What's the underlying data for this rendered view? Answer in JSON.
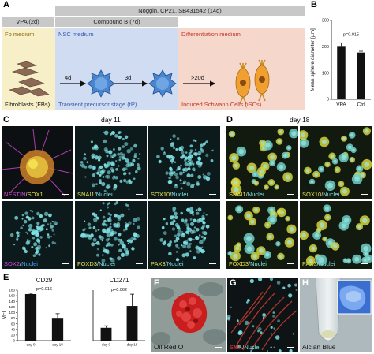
{
  "panel_letters": {
    "a": "A",
    "b": "B",
    "c": "C",
    "d": "D",
    "e": "E",
    "f": "F",
    "g": "G",
    "h": "H"
  },
  "timeline": {
    "top_bar": "Noggin, CP21, SB431542 (14d)",
    "vpa_bar": "VPA (2d)",
    "compound_bar": "Compound B (7d)"
  },
  "stages": {
    "fb_medium": "Fb medium",
    "fb_cells": "Fibroblasts (FBs)",
    "nsc_medium": "NSC medium",
    "tp": "Transient precursor stage (tP)",
    "diff_medium": "Differentiation medium",
    "isc": "Induced Schwann Cells (iSCs)",
    "arrow1": "4d",
    "arrow2": "3d",
    "arrow3": ">20d"
  },
  "colors": {
    "fb_bg": "#f6efc8",
    "nsc_bg": "#cfdcf2",
    "diff_bg": "#f6d7cc",
    "gray_bar": "#c8c8c8",
    "cyan": "#7fe3e6",
    "yellow": "#e6e24a",
    "red_label": "#e23b3b",
    "oil_red": "#c81e1e",
    "blue_label": "#4aa4ff"
  },
  "day_labels": {
    "c": "day 11",
    "d": "day 18"
  },
  "panel_c_labels": [
    [
      "NESTIN",
      "/",
      "SOX1"
    ],
    [
      "SNAI1",
      "/",
      "Nuclei"
    ],
    [
      "SOX10",
      "/",
      "Nuclei"
    ],
    [
      "SOX2",
      "/",
      "Nuclei"
    ],
    [
      "FOXD3",
      "/",
      "Nuclei"
    ],
    [
      "PAX3",
      "/",
      "Nuclei"
    ]
  ],
  "panel_d_labels": [
    [
      "SNAI1",
      "/",
      "Nuclei"
    ],
    [
      "SOX10",
      "/",
      "Nuclei"
    ],
    [
      "FOXD3",
      "/",
      "Nuclei"
    ],
    [
      "PAX3",
      "/",
      "Nuclei"
    ]
  ],
  "panel_f_label": "Oil Red O",
  "panel_g_label": [
    "SMA",
    "/",
    "Nuclei"
  ],
  "panel_h_label": "Alcian Blue",
  "chart_data": [
    {
      "panel": "B",
      "type": "bar",
      "ylabel": "Mean sphere diameter [µm]",
      "categories": [
        "VPA",
        "Ctrl"
      ],
      "values": [
        203,
        178
      ],
      "errors": [
        12,
        5
      ],
      "ylim": [
        0,
        300
      ],
      "yticks": [
        0,
        100,
        200,
        300
      ],
      "annotation": "p=0.015"
    },
    {
      "panel": "E",
      "type": "bar",
      "title": "CD29",
      "ylabel": "MFI",
      "categories": [
        "day 0",
        "day 18"
      ],
      "values": [
        166,
        81
      ],
      "errors": [
        3,
        15
      ],
      "ylim": [
        0,
        180
      ],
      "yticks": [
        0,
        20,
        40,
        60,
        80,
        100,
        120,
        140,
        160,
        180
      ],
      "annotation": "p=0.016"
    },
    {
      "panel": "E",
      "type": "bar",
      "title": "CD271",
      "categories": [
        "day 0",
        "day 18"
      ],
      "values": [
        3.8,
        10.3
      ],
      "errors": [
        0.6,
        3.5
      ],
      "ylim": [
        0,
        15
      ],
      "annotation": "p=0.062"
    }
  ]
}
